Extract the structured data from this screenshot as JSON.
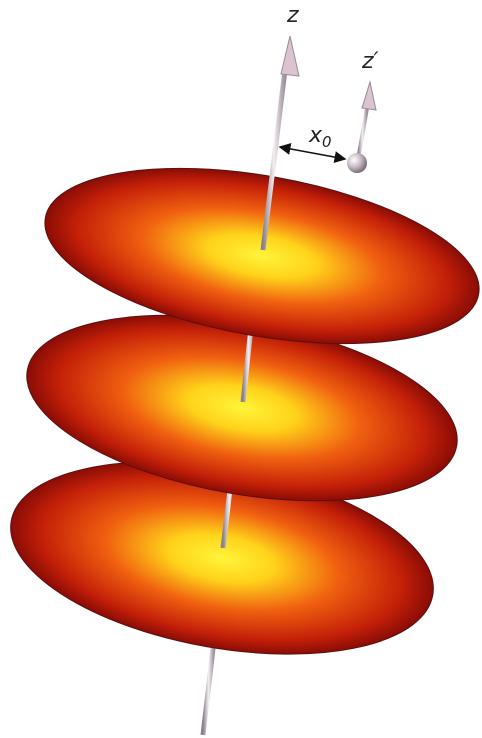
{
  "labels": {
    "z": "z",
    "z_prime": "z′",
    "x0": {
      "base": "x",
      "sub": "0"
    }
  }
}
